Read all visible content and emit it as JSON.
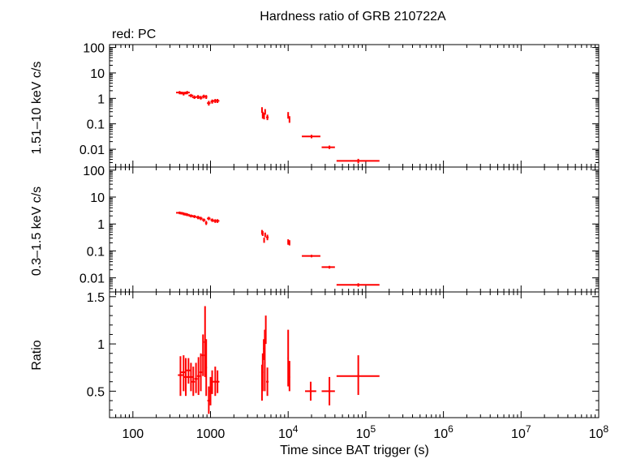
{
  "chart_data": {
    "type": "scatter",
    "title": "Hardness ratio of GRB 210722A",
    "legend": "red: PC",
    "xlabel": "Time since BAT trigger (s)",
    "xscale": "log",
    "xlim": [
      50,
      100000000
    ],
    "x_ticks": [
      {
        "v": 100,
        "label": "100"
      },
      {
        "v": 1000,
        "label": "1000"
      },
      {
        "v": 10000,
        "label": "10",
        "exp": "4"
      },
      {
        "v": 100000,
        "label": "10",
        "exp": "5"
      },
      {
        "v": 1000000,
        "label": "10",
        "exp": "6"
      },
      {
        "v": 10000000,
        "label": "10",
        "exp": "7"
      },
      {
        "v": 100000000,
        "label": "10",
        "exp": "8"
      }
    ],
    "color": "#ff0000",
    "panels": [
      {
        "id": "hard",
        "ylabel": "1.51–10 keV c/s",
        "yscale": "log",
        "ylim": [
          0.002,
          130
        ],
        "y_ticks": [
          {
            "v": 100,
            "label": "100"
          },
          {
            "v": 10,
            "label": "10"
          },
          {
            "v": 1,
            "label": "1"
          },
          {
            "v": 0.1,
            "label": "0.1"
          },
          {
            "v": 0.01,
            "label": "0.01"
          }
        ],
        "points": [
          [
            400,
            440,
            360,
            1.7,
            1.95,
            1.45
          ],
          [
            450,
            490,
            410,
            1.55,
            1.8,
            1.3
          ],
          [
            500,
            540,
            460,
            1.7,
            1.95,
            1.45
          ],
          [
            560,
            600,
            520,
            1.3,
            1.5,
            1.1
          ],
          [
            620,
            660,
            580,
            1.1,
            1.3,
            0.95
          ],
          [
            690,
            730,
            650,
            1.15,
            1.35,
            0.95
          ],
          [
            750,
            790,
            710,
            1.05,
            1.25,
            0.9
          ],
          [
            820,
            860,
            780,
            1.2,
            1.4,
            1.0
          ],
          [
            880,
            910,
            850,
            1.15,
            1.35,
            0.95
          ],
          [
            950,
            1000,
            900,
            0.65,
            0.8,
            0.52
          ],
          [
            1050,
            1100,
            1000,
            0.75,
            0.9,
            0.62
          ],
          [
            1150,
            1250,
            1070,
            0.8,
            0.95,
            0.66
          ],
          [
            1230,
            1300,
            1160,
            0.8,
            0.95,
            0.66
          ],
          [
            4600,
            4700,
            4500,
            0.35,
            0.45,
            0.27
          ],
          [
            4700,
            4800,
            4600,
            0.22,
            0.3,
            0.16
          ],
          [
            4900,
            5000,
            4800,
            0.2,
            0.27,
            0.15
          ],
          [
            5050,
            5150,
            4950,
            0.3,
            0.38,
            0.23
          ],
          [
            5400,
            5600,
            5200,
            0.18,
            0.23,
            0.14
          ],
          [
            10000,
            10200,
            9800,
            0.22,
            0.29,
            0.16
          ],
          [
            10400,
            10600,
            10200,
            0.15,
            0.2,
            0.11
          ],
          [
            20000,
            26000,
            15000,
            0.032,
            0.037,
            0.027
          ],
          [
            34000,
            40000,
            27000,
            0.012,
            0.014,
            0.0102
          ],
          [
            80000,
            150000,
            42000,
            0.0035,
            0.0042,
            0.0028
          ]
        ]
      },
      {
        "id": "soft",
        "ylabel": "0.3–1.5 keV c/s",
        "yscale": "log",
        "ylim": [
          0.003,
          130
        ],
        "y_ticks": [
          {
            "v": 100,
            "label": "100"
          },
          {
            "v": 10,
            "label": "10"
          },
          {
            "v": 1,
            "label": "1"
          },
          {
            "v": 0.1,
            "label": "0.1"
          },
          {
            "v": 0.01,
            "label": "0.01"
          }
        ],
        "points": [
          [
            400,
            440,
            360,
            2.6,
            2.9,
            2.3
          ],
          [
            450,
            490,
            410,
            2.4,
            2.7,
            2.1
          ],
          [
            500,
            540,
            460,
            2.2,
            2.5,
            1.95
          ],
          [
            560,
            600,
            520,
            2.0,
            2.25,
            1.75
          ],
          [
            620,
            660,
            580,
            1.9,
            2.15,
            1.65
          ],
          [
            690,
            730,
            650,
            1.75,
            2.0,
            1.5
          ],
          [
            750,
            790,
            710,
            1.6,
            1.85,
            1.38
          ],
          [
            820,
            860,
            780,
            1.4,
            1.6,
            1.2
          ],
          [
            880,
            910,
            850,
            1.1,
            1.3,
            0.92
          ],
          [
            950,
            1000,
            900,
            1.6,
            1.85,
            1.38
          ],
          [
            1050,
            1100,
            1000,
            1.4,
            1.6,
            1.2
          ],
          [
            1150,
            1250,
            1070,
            1.3,
            1.5,
            1.1
          ],
          [
            1230,
            1300,
            1160,
            1.3,
            1.5,
            1.1
          ],
          [
            4600,
            4700,
            4500,
            0.5,
            0.6,
            0.4
          ],
          [
            4700,
            4800,
            4600,
            0.45,
            0.55,
            0.36
          ],
          [
            4900,
            5000,
            4800,
            0.25,
            0.31,
            0.2
          ],
          [
            5050,
            5150,
            4950,
            0.4,
            0.48,
            0.32
          ],
          [
            5400,
            5600,
            5200,
            0.32,
            0.4,
            0.25
          ],
          [
            10000,
            10200,
            9800,
            0.22,
            0.27,
            0.17
          ],
          [
            10400,
            10600,
            10200,
            0.2,
            0.25,
            0.16
          ],
          [
            20000,
            26000,
            15000,
            0.065,
            0.072,
            0.058
          ],
          [
            34000,
            40000,
            27000,
            0.025,
            0.028,
            0.022
          ],
          [
            80000,
            150000,
            42000,
            0.0055,
            0.0063,
            0.0047
          ]
        ]
      },
      {
        "id": "ratio",
        "ylabel": "Ratio",
        "yscale": "linear",
        "ylim": [
          0.22,
          1.55
        ],
        "y_ticks": [
          {
            "v": 1.5,
            "label": "1.5"
          },
          {
            "v": 1,
            "label": "1"
          },
          {
            "v": 0.5,
            "label": "0.5"
          }
        ],
        "points": [
          [
            410,
            440,
            380,
            0.67,
            0.87,
            0.45
          ],
          [
            450,
            480,
            420,
            0.7,
            0.88,
            0.5
          ],
          [
            480,
            510,
            455,
            0.65,
            0.85,
            0.45
          ],
          [
            520,
            550,
            490,
            0.72,
            0.85,
            0.58
          ],
          [
            560,
            590,
            530,
            0.65,
            0.8,
            0.5
          ],
          [
            600,
            630,
            570,
            0.6,
            0.76,
            0.45
          ],
          [
            650,
            680,
            620,
            0.63,
            0.8,
            0.48
          ],
          [
            700,
            730,
            670,
            0.66,
            0.86,
            0.46
          ],
          [
            750,
            780,
            720,
            0.7,
            0.9,
            0.5
          ],
          [
            800,
            830,
            770,
            0.88,
            1.1,
            0.66
          ],
          [
            850,
            880,
            820,
            1.02,
            1.4,
            0.65
          ],
          [
            880,
            900,
            860,
            0.75,
            1.05,
            0.45
          ],
          [
            950,
            990,
            910,
            0.4,
            0.55,
            0.26
          ],
          [
            1000,
            1040,
            970,
            0.5,
            0.65,
            0.35
          ],
          [
            1050,
            1100,
            1000,
            0.6,
            0.72,
            0.47
          ],
          [
            1150,
            1200,
            1100,
            0.6,
            0.76,
            0.45
          ],
          [
            1230,
            1300,
            1160,
            0.6,
            0.72,
            0.48
          ],
          [
            4600,
            4700,
            4500,
            0.6,
            0.78,
            0.4
          ],
          [
            4700,
            4800,
            4600,
            0.7,
            0.9,
            0.5
          ],
          [
            4850,
            4950,
            4750,
            0.95,
            1.05,
            0.83
          ],
          [
            5000,
            5100,
            4900,
            0.8,
            1.15,
            0.5
          ],
          [
            5150,
            5250,
            5050,
            1.15,
            1.3,
            1.0
          ],
          [
            5400,
            5600,
            5200,
            0.6,
            0.75,
            0.45
          ],
          [
            10000,
            10200,
            9800,
            0.85,
            1.15,
            0.55
          ],
          [
            10400,
            10600,
            10200,
            0.65,
            0.82,
            0.5
          ],
          [
            19500,
            23000,
            16500,
            0.5,
            0.6,
            0.4
          ],
          [
            34000,
            40000,
            27000,
            0.5,
            0.65,
            0.35
          ],
          [
            80000,
            150000,
            42000,
            0.66,
            0.88,
            0.46
          ]
        ]
      }
    ]
  }
}
